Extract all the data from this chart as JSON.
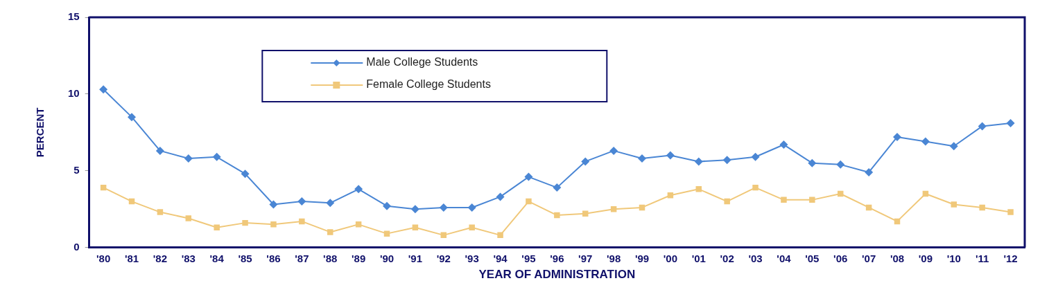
{
  "chart_data": {
    "type": "line",
    "xlabel": "YEAR OF ADMINISTRATION",
    "ylabel": "PERCENT",
    "categories": [
      "'80",
      "'81",
      "'82",
      "'83",
      "'84",
      "'85",
      "'86",
      "'87",
      "'88",
      "'89",
      "'90",
      "'91",
      "'92",
      "'93",
      "'94",
      "'95",
      "'96",
      "'97",
      "'98",
      "'99",
      "'00",
      "'01",
      "'02",
      "'03",
      "'04",
      "'05",
      "'06",
      "'07",
      "'08",
      "'09",
      "'10",
      "'11",
      "'12"
    ],
    "series": [
      {
        "name": "Male College Students",
        "color": "#4a86d4",
        "marker": "diamond",
        "values": [
          10.3,
          8.5,
          6.3,
          5.8,
          5.9,
          4.8,
          2.8,
          3.0,
          2.9,
          3.8,
          2.7,
          2.5,
          2.6,
          2.6,
          3.3,
          4.6,
          3.9,
          5.6,
          6.3,
          5.8,
          6.0,
          5.6,
          5.7,
          5.9,
          6.7,
          5.5,
          5.4,
          4.9,
          7.2,
          6.9,
          6.6,
          7.9,
          8.1
        ]
      },
      {
        "name": "Female College Students",
        "color": "#f0c87a",
        "marker": "square",
        "values": [
          3.9,
          3.0,
          2.3,
          1.9,
          1.3,
          1.6,
          1.5,
          1.7,
          1.0,
          1.5,
          0.9,
          1.3,
          0.8,
          1.3,
          0.8,
          3.0,
          2.1,
          2.2,
          2.5,
          2.6,
          3.4,
          3.8,
          3.0,
          3.9,
          3.1,
          3.1,
          3.5,
          2.6,
          1.7,
          3.5,
          2.8,
          2.6,
          2.3
        ]
      }
    ],
    "ylim": [
      0,
      15
    ],
    "yticks": [
      0,
      5,
      10,
      15
    ],
    "grid": false,
    "legend": "top left",
    "line_style": "solid"
  }
}
